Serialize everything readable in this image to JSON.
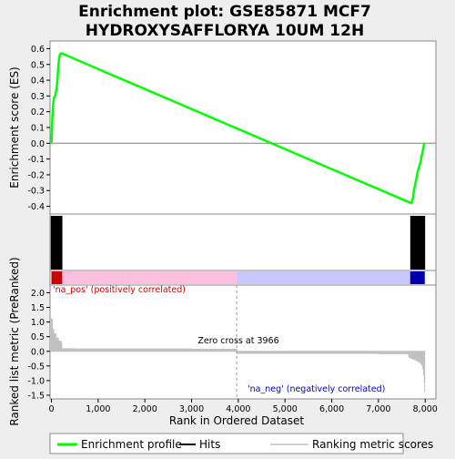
{
  "title_line1": "Enrichment plot: GSE85871 MCF7",
  "title_line2": "HYDROXYSAFFLORYA 10UM 12H",
  "colors": {
    "enrichment": "#00ff00",
    "hits": "#000000",
    "metric": "#c0c0c0",
    "pos_label": "#cc0000",
    "neg_label": "#0000cc",
    "heat_pos": "#ffc0e0",
    "heat_neg": "#c8c8ff",
    "heat_pos_strong": "#cc0000",
    "heat_neg_strong": "#0000aa"
  },
  "chart_data": {
    "type": "line",
    "xlabel": "Rank in Ordered Dataset",
    "xlim": [
      0,
      8200
    ],
    "x_ticks": [
      0,
      1000,
      2000,
      3000,
      4000,
      5000,
      6000,
      7000,
      8000
    ],
    "x_tick_labels": [
      "0",
      "1,000",
      "2,000",
      "3,000",
      "4,000",
      "5,000",
      "6,000",
      "7,000",
      "8,000"
    ],
    "enrichment": {
      "ylabel": "Enrichment score (ES)",
      "ylim": [
        -0.42,
        0.62
      ],
      "y_ticks": [
        -0.4,
        -0.3,
        -0.2,
        -0.1,
        0.0,
        0.1,
        0.2,
        0.3,
        0.4,
        0.5,
        0.6
      ],
      "y_tick_labels": [
        "-0.4",
        "-0.3",
        "-0.2",
        "-0.1",
        "0.0",
        "0.1",
        "0.2",
        "0.3",
        "0.4",
        "0.5",
        "0.6"
      ],
      "x": [
        0,
        10,
        20,
        30,
        45,
        60,
        80,
        100,
        120,
        140,
        160,
        180,
        200,
        220,
        7700,
        7720,
        7740,
        7760,
        7780,
        7800,
        7820,
        7840,
        7860,
        7880,
        7900,
        7920,
        7940,
        7960,
        7980
      ],
      "y": [
        0.0,
        0.08,
        0.16,
        0.22,
        0.27,
        0.29,
        0.3,
        0.33,
        0.37,
        0.45,
        0.53,
        0.56,
        0.57,
        0.57,
        -0.38,
        -0.37,
        -0.34,
        -0.3,
        -0.27,
        -0.24,
        -0.21,
        -0.18,
        -0.16,
        -0.14,
        -0.12,
        -0.09,
        -0.06,
        -0.03,
        0.0
      ]
    },
    "hits": [
      5,
      15,
      25,
      35,
      45,
      55,
      70,
      85,
      100,
      115,
      130,
      145,
      160,
      175,
      190,
      205,
      215,
      7700,
      7715,
      7730,
      7745,
      7760,
      7775,
      7790,
      7810,
      7830,
      7850,
      7870,
      7890,
      7910,
      7930,
      7950,
      7965,
      7980
    ],
    "metric": {
      "ylabel": "Ranked list metric (PreRanked)",
      "ylim": [
        -1.5,
        2.2
      ],
      "y_ticks": [
        -1.5,
        -1.0,
        -0.5,
        0.0,
        0.5,
        1.0,
        1.5,
        2.0
      ],
      "y_tick_labels": [
        "-1.5",
        "-1.0",
        "-0.5",
        "0.0",
        "0.5",
        "1.0",
        "1.5",
        "2.0"
      ],
      "x": [
        0,
        20,
        50,
        100,
        150,
        200,
        220,
        500,
        1500,
        3000,
        3966,
        3967,
        5000,
        7000,
        7600,
        7650,
        7700,
        7750,
        7800,
        7850,
        7900,
        7930,
        7950,
        7965,
        7980,
        7990
      ],
      "y": [
        1.1,
        0.75,
        0.6,
        0.45,
        0.35,
        0.3,
        0.09,
        0.08,
        0.08,
        0.07,
        0.07,
        -0.07,
        -0.07,
        -0.08,
        -0.08,
        -0.2,
        -0.25,
        -0.28,
        -0.32,
        -0.36,
        -0.42,
        -0.48,
        -0.6,
        -0.8,
        -1.05,
        -1.4
      ]
    },
    "zero_cross_rank": 3966,
    "zero_cross_label": "Zero cross at 3966",
    "pos_label": "'na_pos' (positively correlated)",
    "neg_label": "'na_neg' (negatively correlated)",
    "legend": {
      "placement": "bottom",
      "entries": [
        {
          "label": "Enrichment profile",
          "color": "#00ff00"
        },
        {
          "label": "Hits",
          "color": "#000000"
        },
        {
          "label": "Ranking metric scores",
          "color": "#c0c0c0"
        }
      ]
    }
  }
}
